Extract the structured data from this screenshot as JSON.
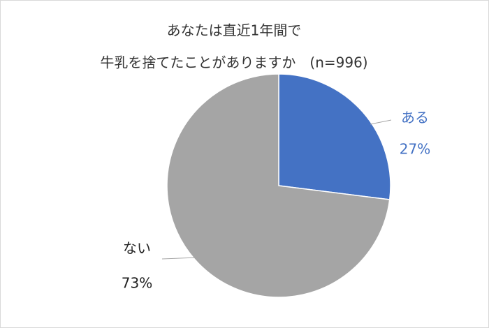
{
  "chart_data": {
    "type": "pie",
    "title": [
      "あなたは直近1年間で",
      "牛乳を捨てたことがありますか　(n=996)"
    ],
    "categories": [
      "ある",
      "ない"
    ],
    "values": [
      27,
      73
    ],
    "value_labels": [
      "27%",
      "73%"
    ],
    "colors": [
      "#4472c4",
      "#a5a5a5"
    ],
    "label_colors": [
      "#4472c4",
      "#222222"
    ]
  }
}
